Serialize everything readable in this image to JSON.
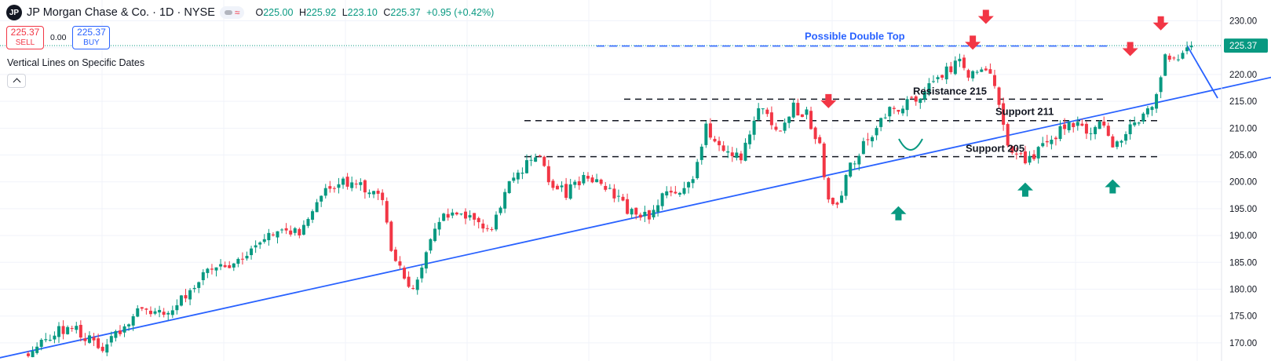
{
  "header": {
    "logo": "JP",
    "title": "JP Morgan Chase & Co. · 1D · NYSE",
    "ohlc": {
      "o_label": "O",
      "o": "225.00",
      "h_label": "H",
      "h": "225.92",
      "l_label": "L",
      "l": "223.10",
      "c_label": "C",
      "c": "225.37",
      "change": "+0.95 (+0.42%)"
    }
  },
  "trade": {
    "sell_price": "225.37",
    "sell_label": "SELL",
    "spread": "0.00",
    "buy_price": "225.37",
    "buy_label": "BUY"
  },
  "indicator": {
    "name": "Vertical Lines on Specific Dates"
  },
  "colors": {
    "up": "#089981",
    "down": "#f23645",
    "trend": "#2962ff",
    "level": "#131722",
    "price_tag": "#089981",
    "bg": "#ffffff",
    "grid": "#f0f3fa"
  },
  "chart_data": {
    "type": "candlestick",
    "last_price": 225.37,
    "ylim": [
      167.5,
      233
    ],
    "y_ticks": [
      230,
      225,
      220,
      215,
      210,
      205,
      200,
      195,
      190,
      185,
      180,
      175,
      170
    ],
    "y_tick_labels": [
      "230.00",
      "225.00",
      "220.00",
      "215.00",
      "210.00",
      "205.00",
      "200.00",
      "195.00",
      "190.00",
      "185.00",
      "180.00",
      "175.00",
      "170.00"
    ],
    "price_tag": "225.37",
    "keypoints": [
      [
        0,
        168.6
      ],
      [
        6,
        171.8
      ],
      [
        10,
        173.2
      ],
      [
        14,
        170.6
      ],
      [
        18,
        169.2
      ],
      [
        22,
        173.4
      ],
      [
        26,
        176.2
      ],
      [
        30,
        175.2
      ],
      [
        34,
        177.2
      ],
      [
        38,
        181.0
      ],
      [
        42,
        183.6
      ],
      [
        46,
        184.8
      ],
      [
        50,
        186.8
      ],
      [
        54,
        190.0
      ],
      [
        58,
        192.0
      ],
      [
        62,
        190.0
      ],
      [
        66,
        196.0
      ],
      [
        70,
        199.8
      ],
      [
        74,
        199.6
      ],
      [
        78,
        198.2
      ],
      [
        81,
        196.0
      ],
      [
        82,
        189.2
      ],
      [
        85,
        183.5
      ],
      [
        88,
        180.4
      ],
      [
        91,
        186.5
      ],
      [
        94,
        192.5
      ],
      [
        98,
        194.8
      ],
      [
        102,
        192.0
      ],
      [
        106,
        191.5
      ],
      [
        110,
        199.5
      ],
      [
        114,
        203.0
      ],
      [
        117,
        204.0
      ],
      [
        119,
        200.5
      ],
      [
        123,
        197.5
      ],
      [
        127,
        201.2
      ],
      [
        131,
        200.0
      ],
      [
        134,
        197.2
      ],
      [
        138,
        194.0
      ],
      [
        142,
        193.4
      ],
      [
        146,
        198.0
      ],
      [
        149,
        199.0
      ],
      [
        152,
        200.5
      ],
      [
        155,
        209.0
      ],
      [
        159,
        206.5
      ],
      [
        163,
        205.0
      ],
      [
        167,
        214.0
      ],
      [
        170,
        211.0
      ],
      [
        173,
        210.0
      ],
      [
        175,
        213.8
      ],
      [
        178,
        212.5
      ],
      [
        181,
        206.5
      ],
      [
        183,
        197.0
      ],
      [
        185,
        196.0
      ],
      [
        188,
        203.0
      ],
      [
        192,
        208.0
      ],
      [
        196,
        212.5
      ],
      [
        200,
        214.0
      ],
      [
        204,
        216.5
      ],
      [
        208,
        218.5
      ],
      [
        211,
        221.5
      ],
      [
        213,
        224.0
      ],
      [
        215,
        219.5
      ],
      [
        218,
        221.5
      ],
      [
        221,
        218.0
      ],
      [
        223,
        210.0
      ],
      [
        225,
        206.0
      ],
      [
        228,
        204.3
      ],
      [
        231,
        205.5
      ],
      [
        234,
        208.0
      ],
      [
        237,
        210.5
      ],
      [
        240,
        210.2
      ],
      [
        243,
        209.5
      ],
      [
        245,
        211.0
      ],
      [
        248,
        206.5
      ],
      [
        252,
        210.0
      ],
      [
        256,
        214.0
      ],
      [
        258,
        215.5
      ],
      [
        260,
        224.0
      ],
      [
        263,
        223.5
      ],
      [
        266,
        225.4
      ]
    ],
    "candle_count": 267,
    "levels": [
      {
        "name": "Resistance 215",
        "price": 215.4
      },
      {
        "name": "Support 211",
        "price": 211.4
      },
      {
        "name": "Support 205",
        "price": 204.7
      }
    ],
    "double_top": {
      "label": "Possible Double Top",
      "price": 225.3
    },
    "trendline": {
      "from": [
        -10,
        166.6
      ],
      "to": [
        285,
        219.6
      ]
    },
    "projection": [
      [
        265,
        225.4
      ],
      [
        272,
        215.6
      ]
    ],
    "down_arrows": [
      {
        "i": 183,
        "price": 214.3
      },
      {
        "i": 216,
        "price": 225.2
      },
      {
        "i": 252,
        "price": 224.0
      },
      {
        "i": 219,
        "price": 230.0
      },
      {
        "i": 259,
        "price": 228.8
      }
    ],
    "up_arrows": [
      {
        "i": 199,
        "price": 194.0
      },
      {
        "i": 228,
        "price": 198.4
      },
      {
        "i": 248,
        "price": 199.0
      }
    ]
  }
}
